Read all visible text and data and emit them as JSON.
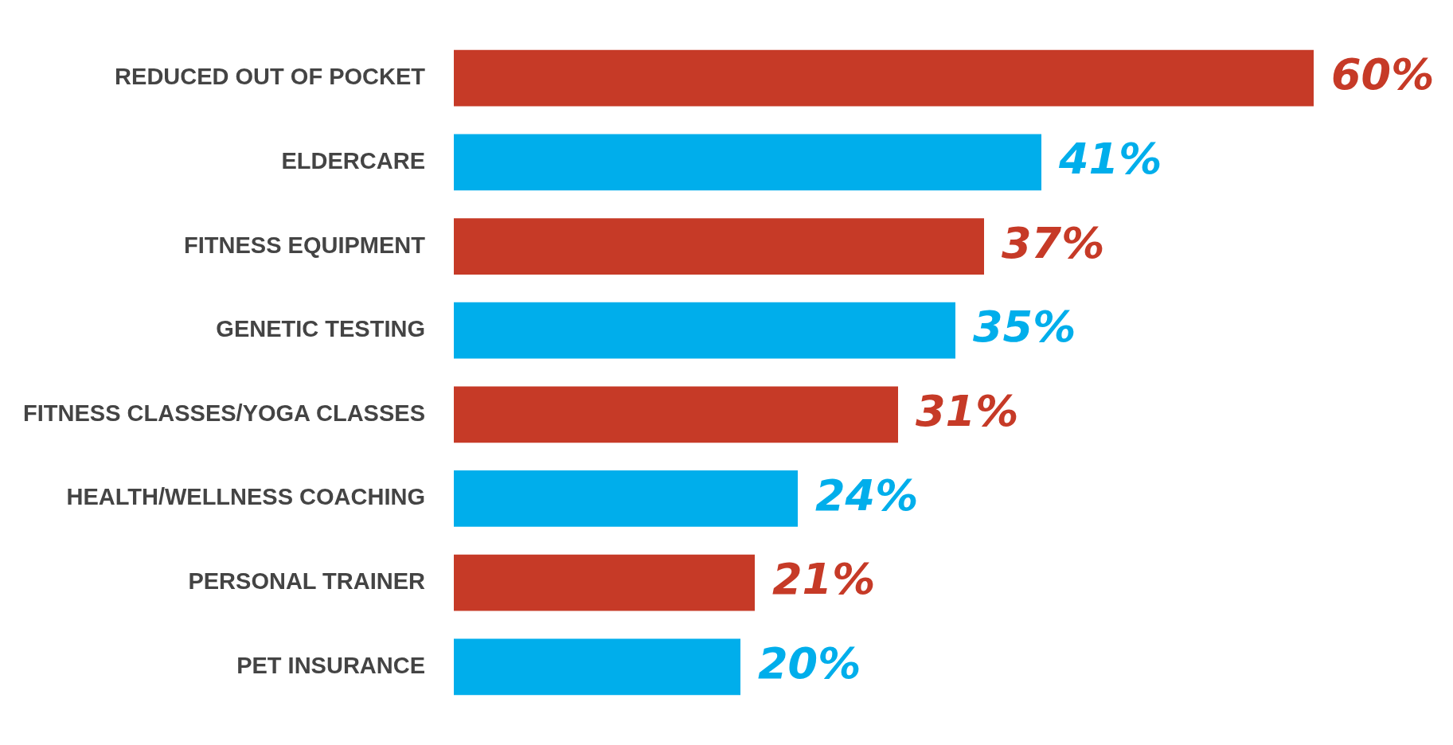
{
  "chart_data": {
    "type": "bar",
    "orientation": "horizontal",
    "data_labels": true,
    "categories": [
      "REDUCED OUT OF POCKET",
      "ELDERCARE",
      "FITNESS EQUIPMENT",
      "GENETIC TESTING",
      "FITNESS CLASSES/YOGA CLASSES",
      "HEALTH/WELLNESS COACHING",
      "PERSONAL TRAINER",
      "PET INSURANCE"
    ],
    "values": [
      60,
      41,
      37,
      35,
      31,
      24,
      21,
      20
    ],
    "value_labels": [
      "60%",
      "41%",
      "37%",
      "35%",
      "31%",
      "24%",
      "21%",
      "20%"
    ],
    "colors": [
      "#c63a27",
      "#00aeeb",
      "#c63a27",
      "#00aeeb",
      "#c63a27",
      "#00aeeb",
      "#c63a27",
      "#00aeeb"
    ],
    "tick_labels": "y"
  }
}
